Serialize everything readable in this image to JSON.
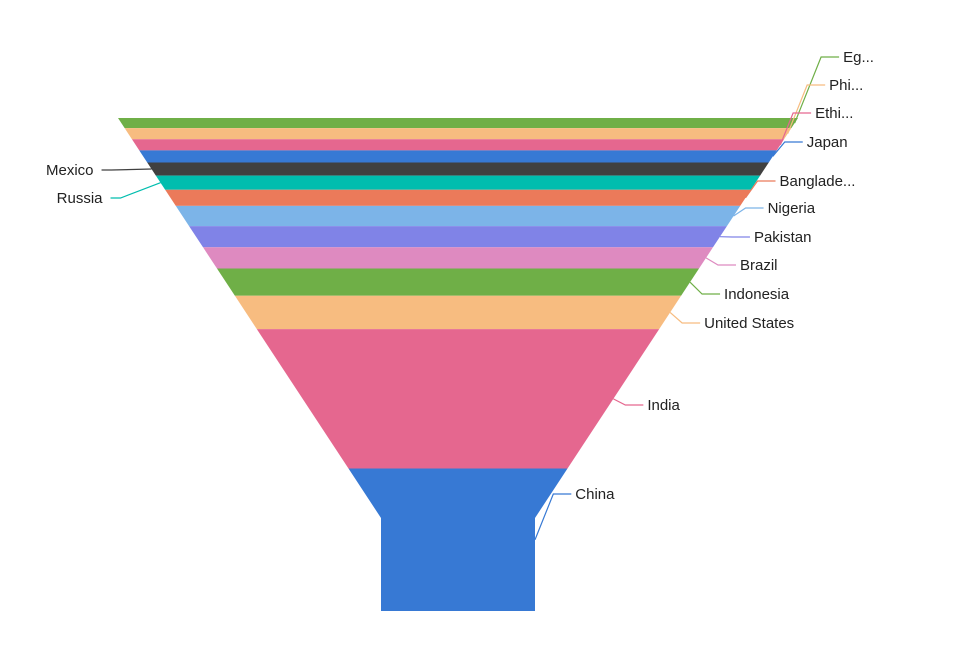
{
  "chart_data": {
    "type": "funnel",
    "title": "",
    "order": "top-to-bottom",
    "series": [
      {
        "name": "Egypt",
        "label": "Eg...",
        "value": 0.1,
        "color": "#6FAF47",
        "side": "right"
      },
      {
        "name": "Philippines",
        "label": "Phi...",
        "value": 0.11,
        "color": "#F7BC80",
        "side": "right"
      },
      {
        "name": "Ethiopia",
        "label": "Ethi...",
        "value": 0.11,
        "color": "#E5678F",
        "side": "right"
      },
      {
        "name": "Japan",
        "label": "Japan",
        "value": 0.12,
        "color": "#3779D4",
        "side": "right"
      },
      {
        "name": "Mexico",
        "label": "Mexico",
        "value": 0.13,
        "color": "#404040",
        "side": "left"
      },
      {
        "name": "Russia",
        "label": "Russia",
        "value": 0.14,
        "color": "#00BDAE",
        "side": "left"
      },
      {
        "name": "Bangladesh",
        "label": "Banglade...",
        "value": 0.16,
        "color": "#EB7A5A",
        "side": "right"
      },
      {
        "name": "Nigeria",
        "label": "Nigeria",
        "value": 0.2,
        "color": "#7CB4E8",
        "side": "right"
      },
      {
        "name": "Pakistan",
        "label": "Pakistan",
        "value": 0.21,
        "color": "#8083E7",
        "side": "right"
      },
      {
        "name": "Brazil",
        "label": "Brazil",
        "value": 0.21,
        "color": "#DE8AC0",
        "side": "right"
      },
      {
        "name": "Indonesia",
        "label": "Indonesia",
        "value": 0.27,
        "color": "#6FAF47",
        "side": "right"
      },
      {
        "name": "United States",
        "label": "United States",
        "value": 0.33,
        "color": "#F7BC80",
        "side": "right"
      },
      {
        "name": "India",
        "label": "India",
        "value": 1.38,
        "color": "#E5678F",
        "side": "right"
      },
      {
        "name": "China",
        "label": "China",
        "value": 1.41,
        "color": "#3779D4",
        "side": "right"
      }
    ],
    "legend": "none"
  }
}
